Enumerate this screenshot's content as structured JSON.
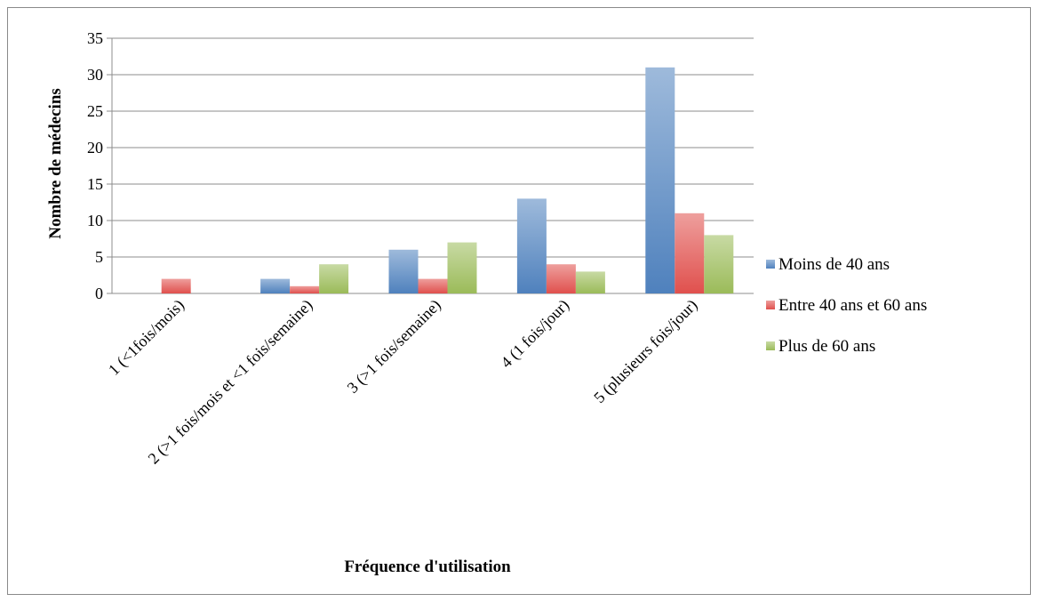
{
  "chart_data": {
    "type": "bar",
    "title": "",
    "xlabel": "Fréquence d'utilisation",
    "ylabel": "Nombre de médecins",
    "ylim": [
      0,
      35
    ],
    "yticks": [
      0,
      5,
      10,
      15,
      20,
      25,
      30,
      35
    ],
    "grid": true,
    "legend_position": "right",
    "categories": [
      "1 (<1fois/mois)",
      "2 (>1 fois/mois et <1 fois/semaine)",
      "3 (>1 fois/semaine)",
      "4 (1 fois/jour)",
      "5 (plusieurs fois/jour)"
    ],
    "series": [
      {
        "name": "Moins de 40 ans",
        "color": "#4f81bd",
        "values": [
          0,
          2,
          6,
          13,
          31
        ]
      },
      {
        "name": "Entre 40 ans et 60 ans",
        "color": "#e0504d",
        "values": [
          2,
          1,
          2,
          4,
          11
        ]
      },
      {
        "name": "Plus de 60 ans",
        "color": "#9bbb59",
        "values": [
          0,
          4,
          7,
          3,
          8
        ]
      }
    ]
  }
}
